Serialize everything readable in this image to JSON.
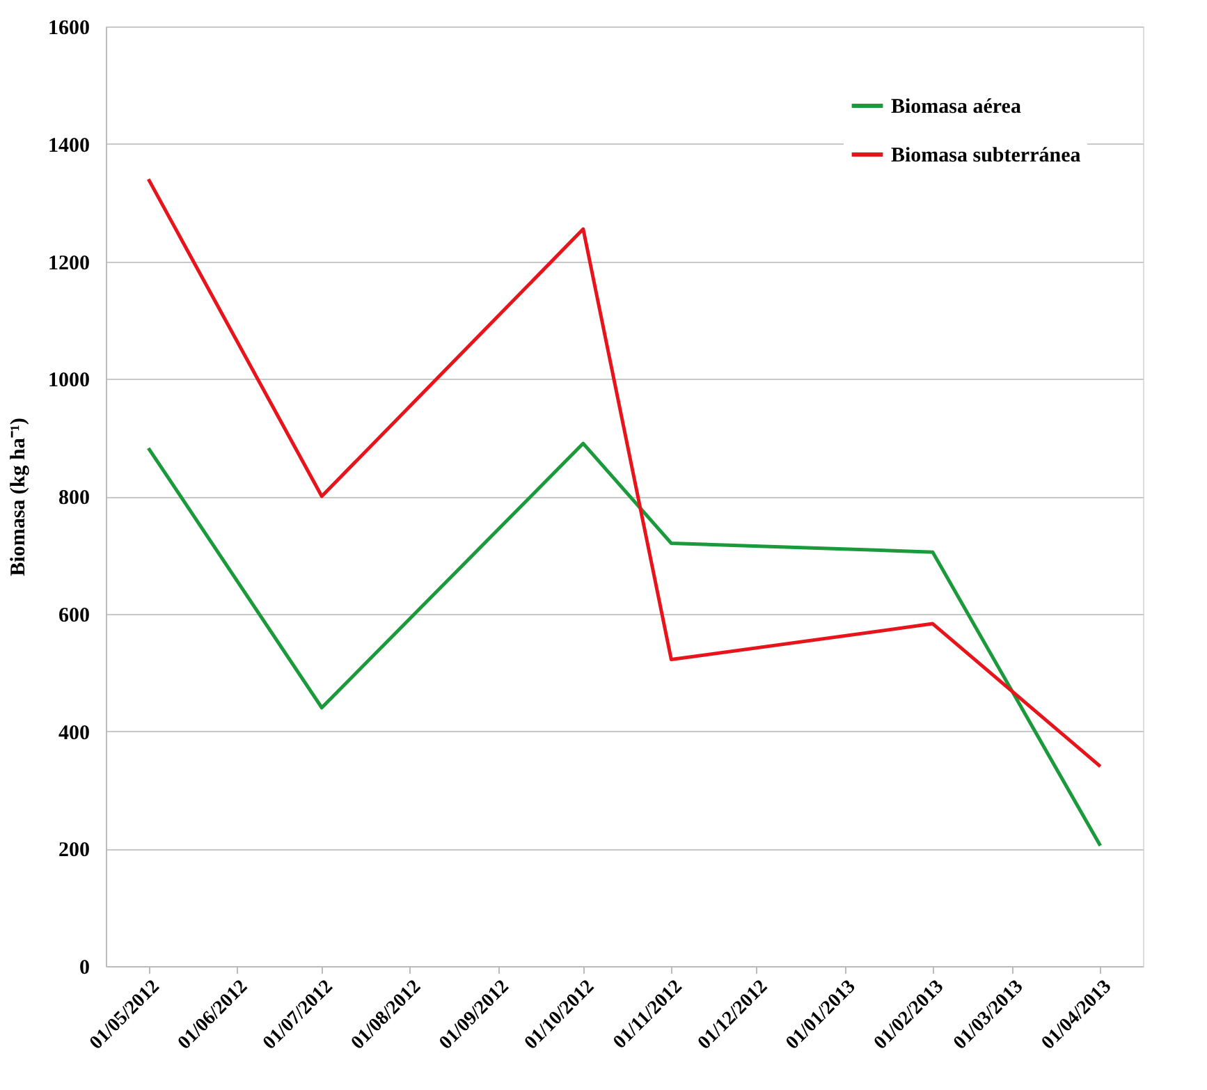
{
  "chart_data": {
    "type": "line",
    "ylabel": "Biomasa (kg ha⁻¹)",
    "x": [
      "2012-05-01",
      "2012-07-01",
      "2012-10-01",
      "2012-11-01",
      "2013-02-01",
      "2013-04-01"
    ],
    "series": [
      {
        "name": "Biomasa aérea",
        "color": "#1a9a3a",
        "values": [
          882,
          440,
          890,
          720,
          705,
          205
        ]
      },
      {
        "name": "Biomasa subterránea",
        "color": "#e8141b",
        "values": [
          1340,
          800,
          1255,
          522,
          583,
          340
        ]
      }
    ],
    "xlim": [
      "2012-04-16",
      "2013-04-16"
    ],
    "xticks": [
      {
        "value": "2012-05-01",
        "label": "01/05/2012"
      },
      {
        "value": "2012-06-01",
        "label": "01/06/2012"
      },
      {
        "value": "2012-07-01",
        "label": "01/07/2012"
      },
      {
        "value": "2012-08-01",
        "label": "01/08/2012"
      },
      {
        "value": "2012-09-01",
        "label": "01/09/2012"
      },
      {
        "value": "2012-10-01",
        "label": "01/10/2012"
      },
      {
        "value": "2012-11-01",
        "label": "01/11/2012"
      },
      {
        "value": "2012-12-01",
        "label": "01/12/2012"
      },
      {
        "value": "2013-01-01",
        "label": "01/01/2013"
      },
      {
        "value": "2013-02-01",
        "label": "01/02/2013"
      },
      {
        "value": "2013-03-01",
        "label": "01/03/2013"
      },
      {
        "value": "2013-04-01",
        "label": "01/04/2013"
      }
    ],
    "ylim": [
      0,
      1600
    ],
    "yticks": [
      0,
      200,
      400,
      600,
      800,
      1000,
      1200,
      1400,
      1600
    ],
    "grid": "y",
    "legend": "top right",
    "marker": "none",
    "line_style": "solid"
  }
}
